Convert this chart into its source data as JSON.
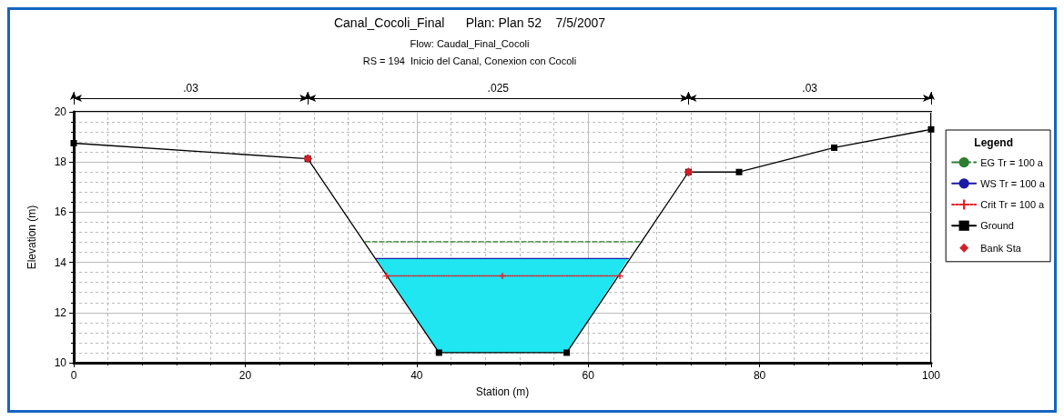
{
  "chart_data": {
    "type": "line",
    "title": "Canal_Cocoli_Final      Plan: Plan 52    7/5/2007",
    "subtitle": "Flow: Caudal_Final_Cocoli\nRS = 194  Inicio del Canal, Conexion con Cocoli",
    "xlabel": "Station (m)",
    "ylabel": "Elevation (m)",
    "legend_title": "Legend",
    "xlim": [
      0,
      100
    ],
    "xticks": [
      0,
      20,
      40,
      60,
      80,
      100
    ],
    "ylim": [
      10,
      20
    ],
    "yticks": [
      10,
      12,
      14,
      16,
      18,
      20
    ],
    "grid": true,
    "legend": "right",
    "annotations": [
      ".03",
      ".025",
      ".03"
    ],
    "series": [
      {
        "name": "EG Tr = 100 a",
        "color": "#2e7d32",
        "line_style": "dashed",
        "marker": "none",
        "x": [
          34.0,
          66.3
        ],
        "values": [
          14.82,
          14.82
        ]
      },
      {
        "name": "WS Tr = 100 a",
        "color": "#1a1aa6",
        "line_style": "solid",
        "marker": "none",
        "x": [
          35.3,
          42.6,
          57.5,
          64.7
        ],
        "values": [
          14.15,
          14.15,
          14.15,
          14.15
        ],
        "lower": [
          14.15,
          10.4,
          10.4,
          14.15
        ],
        "upper": [
          14.15,
          14.15,
          14.15,
          14.15
        ]
      },
      {
        "name": "Crit Tr = 100 a",
        "color": "#e0202a",
        "line_style": "dotted",
        "marker": "cross",
        "x": [
          36.5,
          50,
          63.7
        ],
        "values": [
          13.46,
          13.46,
          13.46
        ]
      },
      {
        "name": "Ground",
        "color": "#000000",
        "line_style": "solid",
        "marker": "square",
        "x": [
          0,
          27.3,
          42.6,
          57.5,
          71.7,
          77.6,
          88.7,
          100
        ],
        "values": [
          18.75,
          18.13,
          10.4,
          10.4,
          17.6,
          17.6,
          18.57,
          19.3
        ]
      },
      {
        "name": "Bank Sta",
        "type": "scatter",
        "color": "#d0202a",
        "marker": "diamond",
        "x": [
          27.3,
          71.7
        ],
        "values": [
          18.13,
          17.6
        ]
      }
    ]
  }
}
